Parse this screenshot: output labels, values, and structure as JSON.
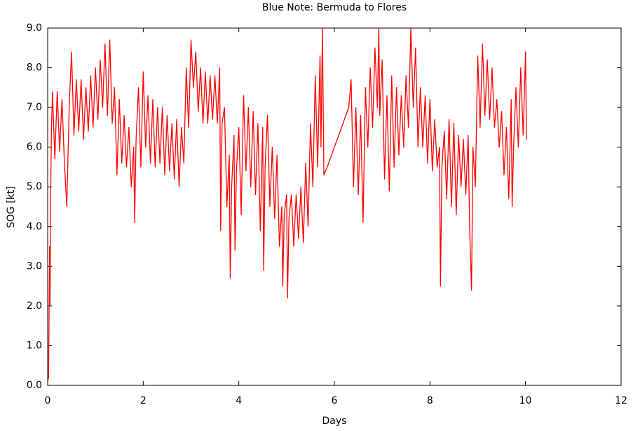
{
  "chart_data": {
    "type": "line",
    "title": "Blue Note: Bermuda to Flores",
    "x_label": "Days",
    "y_label": "SOG [kt]",
    "xlim": [
      0,
      12
    ],
    "xticks": [
      0,
      2,
      4,
      6,
      8,
      10,
      12
    ],
    "ylim": [
      0,
      9
    ],
    "yticks": [
      {
        "value": 0,
        "label": "0.0"
      },
      {
        "value": 1,
        "label": "1.0"
      },
      {
        "value": 2,
        "label": "2.0"
      },
      {
        "value": 3,
        "label": "3.0"
      },
      {
        "value": 4,
        "label": "4.0"
      },
      {
        "value": 5,
        "label": "5.0"
      },
      {
        "value": 6,
        "label": "6.0"
      },
      {
        "value": 7,
        "label": "7.0"
      },
      {
        "value": 8,
        "label": "8.0"
      },
      {
        "value": 9,
        "label": "9.0"
      }
    ],
    "color": "#ff0000",
    "x": [
      0,
      0.02,
      0.04,
      0.05,
      0.06,
      0.08,
      0.1,
      0.15,
      0.2,
      0.25,
      0.3,
      0.35,
      0.4,
      0.45,
      0.5,
      0.55,
      0.6,
      0.65,
      0.7,
      0.75,
      0.8,
      0.85,
      0.9,
      0.95,
      1.0,
      1.05,
      1.1,
      1.15,
      1.2,
      1.25,
      1.3,
      1.35,
      1.4,
      1.45,
      1.5,
      1.55,
      1.6,
      1.65,
      1.7,
      1.75,
      1.8,
      1.82,
      1.85,
      1.9,
      1.95,
      2.0,
      2.05,
      2.1,
      2.15,
      2.2,
      2.25,
      2.3,
      2.35,
      2.4,
      2.45,
      2.5,
      2.55,
      2.6,
      2.65,
      2.7,
      2.75,
      2.8,
      2.85,
      2.9,
      2.95,
      3.0,
      3.05,
      3.1,
      3.15,
      3.2,
      3.25,
      3.3,
      3.35,
      3.4,
      3.45,
      3.5,
      3.55,
      3.6,
      3.62,
      3.65,
      3.7,
      3.75,
      3.8,
      3.82,
      3.85,
      3.9,
      3.92,
      3.95,
      4.0,
      4.05,
      4.1,
      4.15,
      4.2,
      4.25,
      4.3,
      4.35,
      4.4,
      4.45,
      4.5,
      4.52,
      4.55,
      4.6,
      4.65,
      4.7,
      4.75,
      4.8,
      4.85,
      4.9,
      4.92,
      4.95,
      5.0,
      5.02,
      5.05,
      5.1,
      5.15,
      5.2,
      5.25,
      5.3,
      5.35,
      5.4,
      5.45,
      5.5,
      5.55,
      5.6,
      5.65,
      5.7,
      5.72,
      5.75,
      5.78,
      5.85,
      6.3,
      6.35,
      6.4,
      6.45,
      6.5,
      6.55,
      6.6,
      6.65,
      6.7,
      6.75,
      6.8,
      6.85,
      6.9,
      6.93,
      6.95,
      7.0,
      7.05,
      7.1,
      7.15,
      7.2,
      7.25,
      7.3,
      7.35,
      7.4,
      7.45,
      7.5,
      7.55,
      7.6,
      7.65,
      7.7,
      7.75,
      7.8,
      7.85,
      7.9,
      7.95,
      8.0,
      8.05,
      8.1,
      8.15,
      8.2,
      8.22,
      8.25,
      8.3,
      8.35,
      8.4,
      8.45,
      8.5,
      8.55,
      8.6,
      8.65,
      8.7,
      8.75,
      8.8,
      8.83,
      8.87,
      8.9,
      8.95,
      9.0,
      9.05,
      9.1,
      9.15,
      9.2,
      9.25,
      9.3,
      9.35,
      9.4,
      9.45,
      9.5,
      9.55,
      9.6,
      9.65,
      9.7,
      9.72,
      9.75,
      9.8,
      9.85,
      9.9,
      9.95,
      10.0,
      10.02
    ],
    "values": [
      0.1,
      0.2,
      3.5,
      2.0,
      4.5,
      6.5,
      7.4,
      5.7,
      7.4,
      5.9,
      7.2,
      5.6,
      4.5,
      7.0,
      8.4,
      6.3,
      7.7,
      6.4,
      7.7,
      6.2,
      7.5,
      6.4,
      7.8,
      6.5,
      8.0,
      6.7,
      8.2,
      7.0,
      8.6,
      6.8,
      8.7,
      6.6,
      7.5,
      5.3,
      7.2,
      5.6,
      6.8,
      5.5,
      6.5,
      5.0,
      6.0,
      4.1,
      6.2,
      7.5,
      5.5,
      7.9,
      6.0,
      7.3,
      5.6,
      7.2,
      5.5,
      7.0,
      5.6,
      7.0,
      5.3,
      6.8,
      5.4,
      6.6,
      5.2,
      6.7,
      5.0,
      6.5,
      5.6,
      8.0,
      6.5,
      8.7,
      7.5,
      8.4,
      6.9,
      8.0,
      6.6,
      7.9,
      6.6,
      7.8,
      6.7,
      7.8,
      6.6,
      8.0,
      3.9,
      6.6,
      7.0,
      4.5,
      5.8,
      2.7,
      5.0,
      6.3,
      3.4,
      5.4,
      6.5,
      4.3,
      7.3,
      5.4,
      7.0,
      5.0,
      6.9,
      4.8,
      6.6,
      3.9,
      6.5,
      2.9,
      5.5,
      6.8,
      4.5,
      6.0,
      4.2,
      5.8,
      3.5,
      4.5,
      2.5,
      4.3,
      4.8,
      2.2,
      4.2,
      4.8,
      3.5,
      4.8,
      3.7,
      5.0,
      3.6,
      5.6,
      4.0,
      6.6,
      5.0,
      7.8,
      5.5,
      8.3,
      6.0,
      9.0,
      5.3,
      5.5,
      7.0,
      7.7,
      5.0,
      7.0,
      4.8,
      6.8,
      4.1,
      7.5,
      6.0,
      8.0,
      6.5,
      8.5,
      7.0,
      9.0,
      6.8,
      8.2,
      5.2,
      7.3,
      4.9,
      7.8,
      5.5,
      7.5,
      5.8,
      7.3,
      6.0,
      7.8,
      6.5,
      9.0,
      7.0,
      8.5,
      6.0,
      7.5,
      6.0,
      7.3,
      5.6,
      7.2,
      5.4,
      6.7,
      5.5,
      6.0,
      2.5,
      5.5,
      6.4,
      4.7,
      6.7,
      4.5,
      6.6,
      4.3,
      6.3,
      5.0,
      6.2,
      4.8,
      6.3,
      4.0,
      2.4,
      6.0,
      5.0,
      8.3,
      6.5,
      8.6,
      6.8,
      8.2,
      6.7,
      8.0,
      6.5,
      7.2,
      6.0,
      6.9,
      5.3,
      6.5,
      4.7,
      7.2,
      4.5,
      6.0,
      7.5,
      6.0,
      8.0,
      6.3,
      8.4,
      6.2
    ]
  }
}
